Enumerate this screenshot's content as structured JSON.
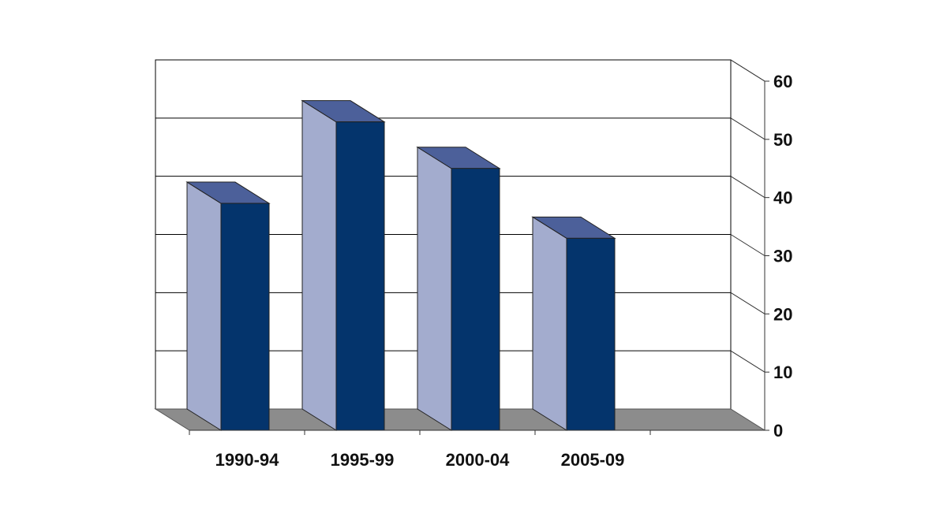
{
  "chart_data": {
    "type": "bar",
    "title": "",
    "xlabel": "",
    "ylabel": "",
    "categories": [
      "1990-94",
      "1995-99",
      "2000-04",
      "2005-09"
    ],
    "values": [
      39,
      53,
      45,
      33
    ],
    "ylim": [
      0,
      60
    ],
    "yticks": [
      "0",
      "10",
      "20",
      "30",
      "40",
      "50",
      "60"
    ],
    "y_axis_side": "right",
    "grid": true,
    "style": "3d-column",
    "colors": {
      "bar_front": "#04346c",
      "bar_side": "#a3acce",
      "bar_top": "#4c609a",
      "floor": "#8c8c8c",
      "gridline": "#000000",
      "background": "#ffffff"
    }
  }
}
